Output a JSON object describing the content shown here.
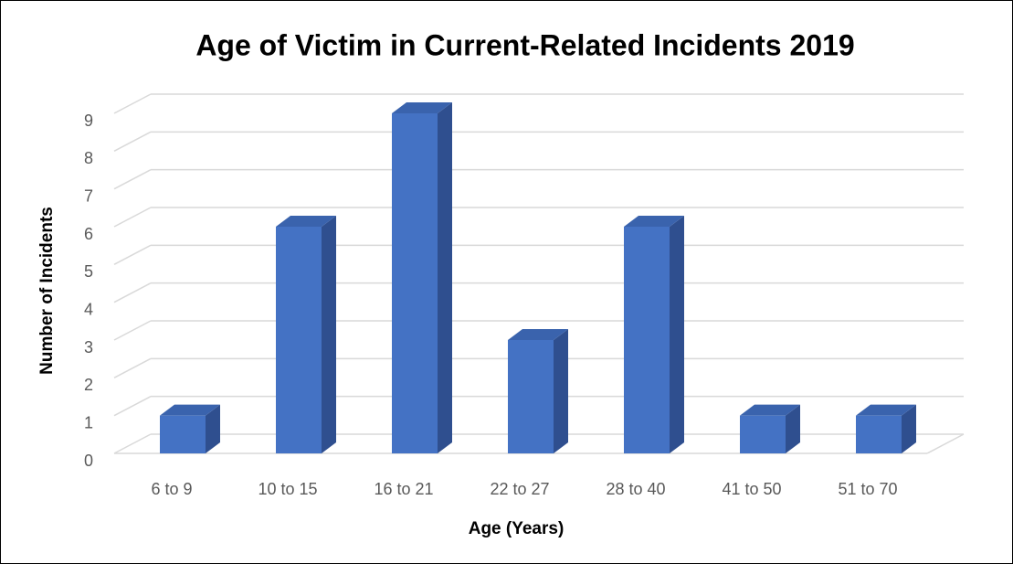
{
  "chart_data": {
    "type": "bar3d",
    "title": "Age of Victim in Current-Related Incidents 2019",
    "x_label": "Age (Years)",
    "y_label": "Number of Incidents",
    "categories": [
      "6 to 9",
      "10 to 15",
      "16 to 21",
      "22 to 27",
      "28 to 40",
      "41 to 50",
      "51 to 70"
    ],
    "values": [
      1,
      6,
      9,
      3,
      6,
      1,
      1
    ],
    "color": "#4472c4",
    "ylim": [
      0,
      9
    ],
    "yticks": [
      0,
      1,
      2,
      3,
      4,
      5,
      6,
      7,
      8,
      9
    ],
    "grid": true
  }
}
